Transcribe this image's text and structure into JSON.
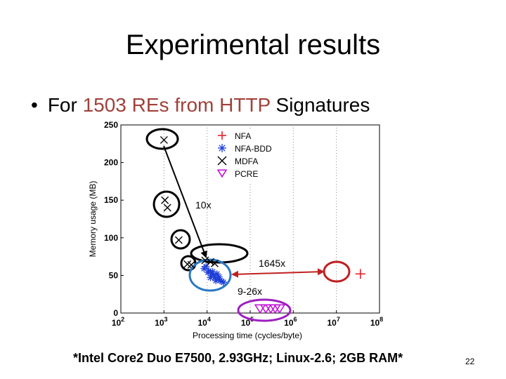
{
  "slide": {
    "title": "Experimental results",
    "bullet": {
      "prefix": "For ",
      "highlight1": "1503 REs from",
      "middle": " ",
      "highlight2": "HTTP",
      "suffix": " Signatures"
    },
    "footnote": "*Intel Core2 Duo E7500, 2.93GHz; Linux-2.6; 2GB RAM*",
    "page_number": "22"
  },
  "chart_data": {
    "type": "scatter",
    "xlabel": "Processing time (cycles/byte)",
    "ylabel": "Memory usage (MB)",
    "xscale": "log",
    "xlim": [
      100,
      100000000
    ],
    "ylim": [
      0,
      250
    ],
    "x_ticks": [
      {
        "base": "10",
        "exp": "2",
        "value": 100
      },
      {
        "base": "10",
        "exp": "3",
        "value": 1000
      },
      {
        "base": "10",
        "exp": "4",
        "value": 10000
      },
      {
        "base": "10",
        "exp": "5",
        "value": 100000
      },
      {
        "base": "10",
        "exp": "6",
        "value": 1000000
      },
      {
        "base": "10",
        "exp": "7",
        "value": 10000000
      },
      {
        "base": "10",
        "exp": "8",
        "value": 100000000
      }
    ],
    "y_ticks": [
      "0",
      "50",
      "100",
      "150",
      "200",
      "250"
    ],
    "grid": "x-major dotted",
    "legend_position": "top-right",
    "series": [
      {
        "name": "NFA",
        "marker": "plus",
        "color": "#e8202a",
        "points": [
          [
            36000000,
            52
          ]
        ]
      },
      {
        "name": "NFA-BDD",
        "marker": "star",
        "color": "#1e3fd8",
        "points": [
          [
            8500,
            59
          ],
          [
            9500,
            62
          ],
          [
            11000,
            56
          ],
          [
            12500,
            52
          ],
          [
            14000,
            50
          ],
          [
            15500,
            47
          ],
          [
            17000,
            52
          ],
          [
            18500,
            45
          ],
          [
            20000,
            43
          ],
          [
            22000,
            42
          ],
          [
            12000,
            47
          ],
          [
            16000,
            43
          ],
          [
            19000,
            48
          ],
          [
            24000,
            41
          ],
          [
            10500,
            54
          ],
          [
            13500,
            55
          ]
        ]
      },
      {
        "name": "MDFA",
        "marker": "x",
        "color": "#000000",
        "points": [
          [
            1000,
            230
          ],
          [
            1050,
            150
          ],
          [
            1200,
            140
          ],
          [
            2200,
            97
          ],
          [
            3500,
            65
          ],
          [
            4300,
            64
          ],
          [
            9000,
            70
          ],
          [
            12000,
            68
          ],
          [
            15000,
            66
          ]
        ]
      },
      {
        "name": "PCRE",
        "marker": "triangle-down",
        "color": "#c00ad8",
        "points": [
          [
            170000,
            0
          ],
          [
            230000,
            0
          ],
          [
            300000,
            0
          ],
          [
            380000,
            0
          ],
          [
            480000,
            0
          ]
        ]
      }
    ],
    "annotations": [
      "10x",
      "1645x",
      "9-26x"
    ]
  }
}
